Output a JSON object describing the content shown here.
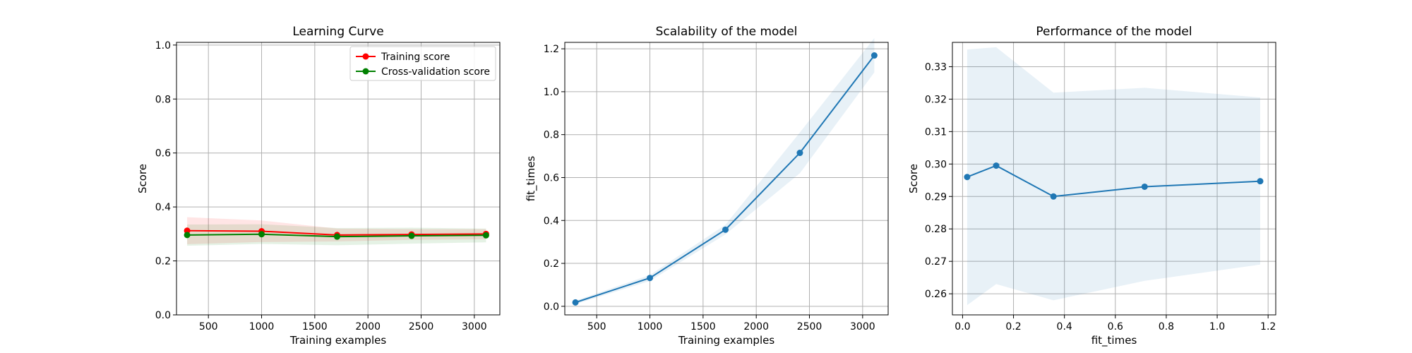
{
  "chart_data": [
    {
      "type": "line",
      "title": "Learning Curve",
      "xlabel": "Training examples",
      "ylabel": "Score",
      "xlim": [
        200,
        3240
      ],
      "ylim": [
        0.0,
        1.01
      ],
      "xticks": [
        500,
        1000,
        1500,
        2000,
        2500,
        3000
      ],
      "yticks": [
        0.0,
        0.2,
        0.4,
        0.6,
        0.8,
        1.0
      ],
      "xtick_labels": [
        "500",
        "1000",
        "1500",
        "2000",
        "2500",
        "3000"
      ],
      "ytick_labels": [
        "0.0",
        "0.2",
        "0.4",
        "0.6",
        "0.8",
        "1.0"
      ],
      "grid": true,
      "legend": "top-right",
      "x": [
        300,
        1000,
        1710,
        2410,
        3110
      ],
      "series": [
        {
          "name": "Training score",
          "color": "#ff0000",
          "values": [
            0.312,
            0.31,
            0.296,
            0.298,
            0.3
          ],
          "band_low": [
            0.262,
            0.27,
            0.272,
            0.278,
            0.28
          ],
          "band_high": [
            0.362,
            0.35,
            0.32,
            0.318,
            0.318
          ]
        },
        {
          "name": "Cross-validation score",
          "color": "#008000",
          "values": [
            0.296,
            0.299,
            0.29,
            0.293,
            0.295
          ],
          "band_low": [
            0.256,
            0.263,
            0.258,
            0.264,
            0.269
          ],
          "band_high": [
            0.335,
            0.336,
            0.322,
            0.323,
            0.32
          ]
        }
      ]
    },
    {
      "type": "line",
      "title": "Scalability of the model",
      "xlabel": "Training examples",
      "ylabel": "fit_times",
      "xlim": [
        200,
        3240
      ],
      "ylim": [
        -0.04,
        1.23
      ],
      "xticks": [
        500,
        1000,
        1500,
        2000,
        2500,
        3000
      ],
      "yticks": [
        0.0,
        0.2,
        0.4,
        0.6,
        0.8,
        1.0,
        1.2
      ],
      "xtick_labels": [
        "500",
        "1000",
        "1500",
        "2000",
        "2500",
        "3000"
      ],
      "ytick_labels": [
        "0.0",
        "0.2",
        "0.4",
        "0.6",
        "0.8",
        "1.0",
        "1.2"
      ],
      "grid": true,
      "x": [
        300,
        1000,
        1710,
        2410,
        3110
      ],
      "series": [
        {
          "color": "#1f77b4",
          "values": [
            0.018,
            0.132,
            0.357,
            0.715,
            1.169
          ],
          "band_low": [
            0.01,
            0.118,
            0.335,
            0.62,
            1.09
          ],
          "band_high": [
            0.026,
            0.146,
            0.38,
            0.81,
            1.25
          ]
        }
      ]
    },
    {
      "type": "line",
      "title": "Performance of the model",
      "xlabel": "fit_times",
      "ylabel": "Score",
      "xlim": [
        -0.04,
        1.23
      ],
      "ylim": [
        0.2535,
        0.3375
      ],
      "xticks": [
        0.0,
        0.2,
        0.4,
        0.6,
        0.8,
        1.0,
        1.2
      ],
      "yticks": [
        0.26,
        0.27,
        0.28,
        0.29,
        0.3,
        0.31,
        0.32,
        0.33
      ],
      "xtick_labels": [
        "0.0",
        "0.2",
        "0.4",
        "0.6",
        "0.8",
        "1.0",
        "1.2"
      ],
      "ytick_labels": [
        "0.26",
        "0.27",
        "0.28",
        "0.29",
        "0.30",
        "0.31",
        "0.32",
        "0.33"
      ],
      "grid": true,
      "x": [
        0.018,
        0.132,
        0.357,
        0.715,
        1.169
      ],
      "series": [
        {
          "color": "#1f77b4",
          "values": [
            0.296,
            0.2995,
            0.29,
            0.293,
            0.2947
          ],
          "band_low": [
            0.2565,
            0.263,
            0.258,
            0.264,
            0.269
          ],
          "band_high": [
            0.3353,
            0.336,
            0.322,
            0.3235,
            0.3205
          ]
        }
      ]
    }
  ]
}
